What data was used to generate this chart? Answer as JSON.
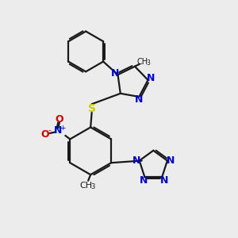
{
  "bg_color": "#ececec",
  "bond_color": "#1a1a1a",
  "N_color": "#0000cc",
  "O_color": "#cc0000",
  "S_color": "#cccc00",
  "lw": 1.6,
  "figsize": [
    3.0,
    3.0
  ],
  "dpi": 100,
  "xlim": [
    0,
    10
  ],
  "ylim": [
    0,
    10
  ]
}
